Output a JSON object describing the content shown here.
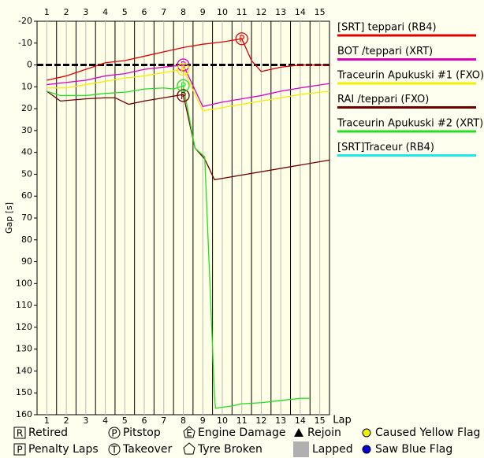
{
  "chart_data": {
    "type": "line",
    "y_label": "Gap [s]",
    "x_label": "Lap",
    "xlim": [
      0.5,
      15.5
    ],
    "xticks": [
      1,
      2,
      3,
      4,
      5,
      6,
      7,
      8,
      9,
      10,
      11,
      12,
      13,
      14,
      15
    ],
    "ylim": [
      -20,
      160
    ],
    "yticks": [
      -20,
      -10,
      0,
      10,
      20,
      30,
      40,
      50,
      60,
      70,
      80,
      90,
      100,
      110,
      120,
      130,
      140,
      150,
      160
    ],
    "series": [
      {
        "name": "[SRT] teppari (RB4)",
        "color": "#e00000",
        "x": [
          1,
          2,
          3,
          4,
          5,
          6,
          7,
          8,
          9,
          10,
          11,
          11.5,
          12,
          13,
          14,
          15.5
        ],
        "values": [
          7,
          5,
          2,
          -1,
          -2,
          -4,
          -6,
          -8,
          -9.5,
          -10.5,
          -12,
          -2,
          3,
          1,
          0,
          0
        ]
      },
      {
        "name": "BOT /teppari (XRT)",
        "color": "#e000c0",
        "x": [
          1,
          2,
          3,
          4,
          5,
          6,
          7,
          8,
          9,
          10,
          11,
          12,
          13,
          14,
          15.5
        ],
        "values": [
          9,
          8,
          7,
          5,
          4,
          2,
          1,
          0,
          19,
          17,
          15.5,
          14,
          12,
          10.5,
          8.5
        ]
      },
      {
        "name": "Traceurin Apukuski #1 (FXO)",
        "color": "#f0f000",
        "x": [
          1,
          2,
          3,
          4,
          5,
          6,
          7,
          8,
          9,
          10,
          11,
          12,
          13,
          14,
          15.5
        ],
        "values": [
          10.5,
          10.5,
          9,
          7.5,
          6,
          5,
          3.5,
          2,
          21,
          19.5,
          18,
          16.5,
          15,
          13.5,
          12
        ]
      },
      {
        "name": "RAI /teppari (FXO)",
        "color": "#700000",
        "x": [
          1,
          1.7,
          3,
          4,
          4.5,
          5.2,
          6,
          7,
          8,
          8.6,
          9.1,
          9.6,
          15.5
        ],
        "values": [
          12,
          16.5,
          15.5,
          15,
          15,
          18,
          16.5,
          15,
          13.5,
          38,
          43,
          52.5,
          43.5
        ]
      },
      {
        "name": "Traceurin Apukuski #2 (XRT)",
        "color": "#20e020",
        "x": [
          1,
          1.7,
          3,
          4,
          5,
          6,
          7,
          7.5,
          8,
          8.6,
          9.1,
          9.6,
          9.65,
          10.5,
          11,
          12,
          13,
          14,
          14.5
        ],
        "values": [
          12,
          14,
          14,
          13,
          12.5,
          11,
          10.5,
          11,
          9.5,
          38,
          42,
          151,
          157,
          156,
          155,
          154.5,
          153.5,
          152.5,
          152.5
        ]
      },
      {
        "name": "[SRT]Traceur (RB4)",
        "color": "#20e8e8",
        "x": [],
        "values": []
      }
    ],
    "pit_stops": [
      {
        "series": 0,
        "x": 11,
        "y": -12
      },
      {
        "series": 1,
        "x": 8,
        "y": 0
      },
      {
        "series": 2,
        "x": 8,
        "y": 2
      },
      {
        "series": 3,
        "x": 8,
        "y": 14
      },
      {
        "series": 4,
        "x": 8,
        "y": 9.5
      }
    ],
    "event_legend": [
      {
        "symbol": "R",
        "label": "Retired"
      },
      {
        "symbol": "P",
        "label": "Penalty Laps"
      },
      {
        "symbol": "P",
        "label": "Pitstop"
      },
      {
        "symbol": "T",
        "label": "Takeover"
      },
      {
        "symbol": "E",
        "label": "Engine Damage"
      },
      {
        "label": "Tyre Broken"
      },
      {
        "label": "Rejoin"
      },
      {
        "label": "Lapped"
      },
      {
        "label": "Caused Yellow Flag"
      },
      {
        "label": "Saw Blue Flag"
      }
    ]
  }
}
